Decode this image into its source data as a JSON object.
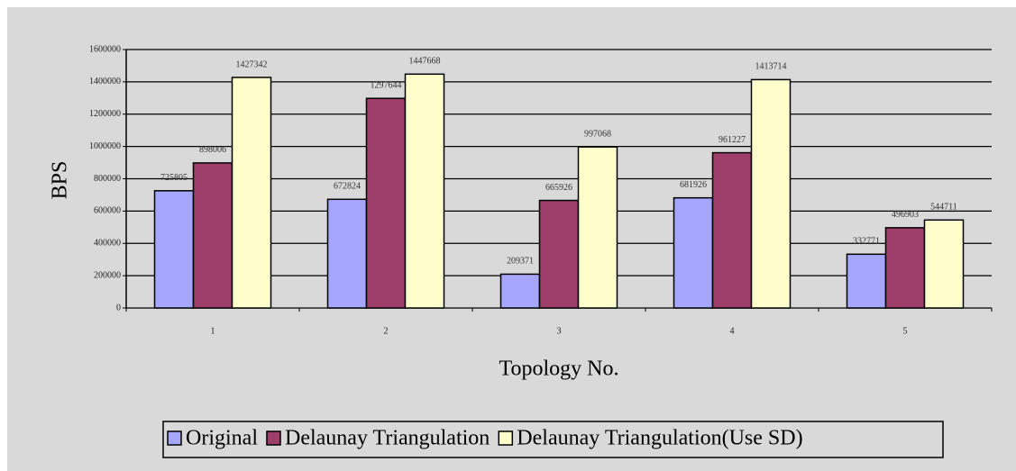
{
  "chart_data": {
    "type": "bar",
    "categories": [
      "1",
      "2",
      "3",
      "4",
      "5"
    ],
    "series": [
      {
        "name": "Original",
        "color": "#a6a6ff",
        "values": [
          725805,
          672824,
          209371,
          681926,
          332771
        ]
      },
      {
        "name": "Delaunay Triangulation",
        "color": "#9e3f6b",
        "values": [
          898006,
          1297644,
          665926,
          961227,
          496903
        ]
      },
      {
        "name": "Delaunay Triangulation(Use SD)",
        "color": "#ffffcc",
        "values": [
          1427342,
          1447668,
          997068,
          1413714,
          544711
        ]
      }
    ],
    "xlabel": "Topology No.",
    "ylabel": "BPS",
    "ylim": [
      0,
      1600000
    ],
    "yticks": [
      0,
      200000,
      400000,
      600000,
      800000,
      1000000,
      1200000,
      1400000,
      1600000
    ],
    "grid": true,
    "legend": "bottom"
  }
}
